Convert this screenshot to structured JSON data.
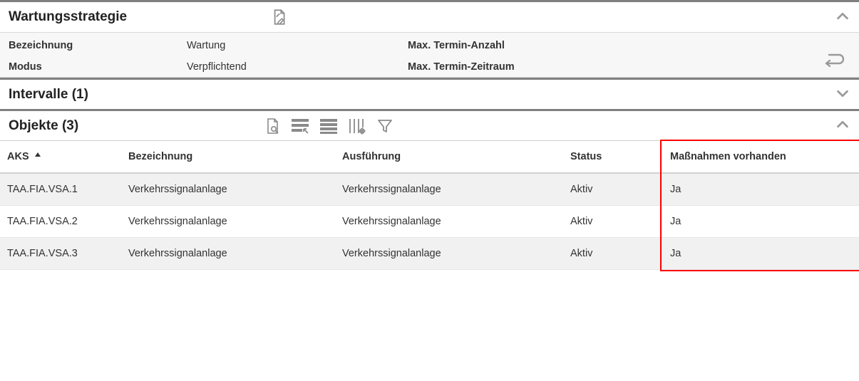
{
  "wartung": {
    "title": "Wartungsstrategie",
    "labels": {
      "bezeichnung": "Bezeichnung",
      "modus": "Modus",
      "maxTerminAnzahl": "Max. Termin-Anzahl",
      "maxTerminZeitraum": "Max. Termin-Zeitraum"
    },
    "values": {
      "bezeichnung": "Wartung",
      "modus": "Verpflichtend",
      "maxTerminAnzahl": "",
      "maxTerminZeitraum": ""
    }
  },
  "intervalle": {
    "title": "Intervalle (1)"
  },
  "objekte": {
    "title": "Objekte (3)",
    "columns": {
      "aks": "AKS",
      "bezeichnung": "Bezeichnung",
      "ausfuehrung": "Ausführung",
      "status": "Status",
      "massnahmen": "Maßnahmen vorhanden"
    },
    "rows": [
      {
        "aks": "TAA.FIA.VSA.1",
        "bez": "Verkehrssignalanlage",
        "ausf": "Verkehrssignalanlage",
        "status": "Aktiv",
        "mass": "Ja"
      },
      {
        "aks": "TAA.FIA.VSA.2",
        "bez": "Verkehrssignalanlage",
        "ausf": "Verkehrssignalanlage",
        "status": "Aktiv",
        "mass": "Ja"
      },
      {
        "aks": "TAA.FIA.VSA.3",
        "bez": "Verkehrssignalanlage",
        "ausf": "Verkehrssignalanlage",
        "status": "Aktiv",
        "mass": "Ja"
      }
    ],
    "highlightColumn": "massnahmen",
    "highlightColor": "#ff0000"
  },
  "colors": {
    "panelBg": "#f7f7f7",
    "rowOdd": "#f1f1f1",
    "rowEven": "#ffffff",
    "iconGray": "#8a8a8a",
    "chevronGray": "#9a9a9a",
    "dividerThick": "#808080"
  }
}
